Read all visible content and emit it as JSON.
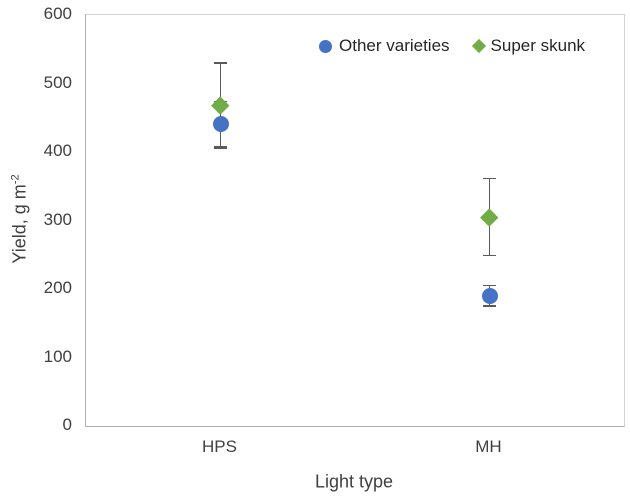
{
  "chart_data": {
    "type": "scatter",
    "title": "",
    "xlabel": "Light type",
    "ylabel": {
      "text": "Yield, g m",
      "sup": "-2"
    },
    "ylim": [
      0,
      600
    ],
    "ytick_step": 100,
    "categories": [
      "HPS",
      "MH"
    ],
    "grid": false,
    "legend_position": "top-right-inside",
    "error_bar_color": "#5a5a5a",
    "series": [
      {
        "name": "Other varieties",
        "marker": "circle",
        "color": "#4472C4",
        "points": [
          {
            "category": "HPS",
            "value": 441,
            "err_low": 408,
            "err_high": 474
          },
          {
            "category": "MH",
            "value": 190,
            "err_low": 175,
            "err_high": 205
          }
        ]
      },
      {
        "name": "Super skunk",
        "marker": "diamond",
        "color": "#70AD47",
        "points": [
          {
            "category": "HPS",
            "value": 468,
            "err_low": 406,
            "err_high": 530
          },
          {
            "category": "MH",
            "value": 305,
            "err_low": 249,
            "err_high": 361
          }
        ]
      }
    ]
  }
}
